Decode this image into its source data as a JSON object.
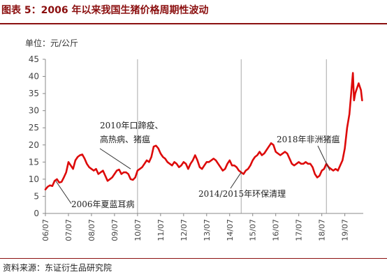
{
  "figure": {
    "title": "图表 5：2006 年以来我国生猪价格周期性波动",
    "unit_label": "单位：元/公斤",
    "source": "资料来源：东证衍生品研究院"
  },
  "colors": {
    "line": "#dd0a0a",
    "title": "#8b0f0f",
    "divider": "#a9a9a9"
  },
  "chart_data": {
    "type": "line",
    "xlabel": "",
    "ylabel": "元/公斤",
    "ylim": [
      0,
      45
    ],
    "yticks": [
      "0",
      "5",
      "10",
      "15",
      "20",
      "25",
      "30",
      "35",
      "40",
      "45"
    ],
    "x_tick_labels": [
      "06/07",
      "07/07",
      "08/07",
      "09/07",
      "10/07",
      "11/07",
      "12/07",
      "13/07",
      "14/07",
      "15/07",
      "16/07",
      "17/07",
      "18/07",
      "19/07"
    ],
    "grid": false,
    "series": [
      {
        "x": [
          2006.5,
          2006.6,
          2006.7,
          2006.8,
          2006.9,
          2007.0,
          2007.1,
          2007.2,
          2007.3,
          2007.4,
          2007.5,
          2007.6,
          2007.7,
          2007.8,
          2007.9,
          2008.0,
          2008.1,
          2008.2,
          2008.3,
          2008.4,
          2008.5,
          2008.6,
          2008.7,
          2008.8,
          2008.9,
          2009.0,
          2009.1,
          2009.2,
          2009.3,
          2009.4,
          2009.5,
          2009.6,
          2009.7,
          2009.8,
          2009.9,
          2010.0,
          2010.1,
          2010.2,
          2010.3,
          2010.4,
          2010.5,
          2010.6,
          2010.7,
          2010.8,
          2010.9,
          2011.0,
          2011.1,
          2011.2,
          2011.3,
          2011.4,
          2011.5,
          2011.6,
          2011.7,
          2011.8,
          2011.9,
          2012.0,
          2012.1,
          2012.2,
          2012.3,
          2012.4,
          2012.5,
          2012.6,
          2012.7,
          2012.8,
          2012.9,
          2013.0,
          2013.1,
          2013.2,
          2013.3,
          2013.4,
          2013.5,
          2013.6,
          2013.7,
          2013.8,
          2013.9,
          2014.0,
          2014.1,
          2014.2,
          2014.3,
          2014.4,
          2014.5,
          2014.6,
          2014.7,
          2014.8,
          2014.9,
          2015.0,
          2015.1,
          2015.2,
          2015.3,
          2015.4,
          2015.5,
          2015.6,
          2015.7,
          2015.8,
          2015.9,
          2016.0,
          2016.1,
          2016.2,
          2016.3,
          2016.4,
          2016.5,
          2016.6,
          2016.7,
          2016.8,
          2016.9,
          2017.0,
          2017.1,
          2017.2,
          2017.3,
          2017.4,
          2017.5,
          2017.6,
          2017.7,
          2017.8,
          2017.9,
          2018.0,
          2018.1,
          2018.2,
          2018.3,
          2018.4,
          2018.5,
          2018.6,
          2018.7,
          2018.8,
          2018.9,
          2019.0,
          2019.1,
          2019.2,
          2019.3,
          2019.4,
          2019.5,
          2019.6,
          2019.7,
          2019.8,
          2019.85,
          2019.9,
          2019.95,
          2020.0,
          2020.1,
          2020.2,
          2020.25
        ],
        "values": [
          7.0,
          7.8,
          8.2,
          8.0,
          9.5,
          10.0,
          9.0,
          9.2,
          10.5,
          12.0,
          15.0,
          14.0,
          13.0,
          15.5,
          16.5,
          17.0,
          17.2,
          16.0,
          14.5,
          13.5,
          13.0,
          12.5,
          13.0,
          11.5,
          12.0,
          12.5,
          11.0,
          9.5,
          10.0,
          10.5,
          11.5,
          12.5,
          12.8,
          11.5,
          12.0,
          12.0,
          11.5,
          10.0,
          9.8,
          10.5,
          12.5,
          13.0,
          13.5,
          14.5,
          15.5,
          15.0,
          16.5,
          19.5,
          19.8,
          19.0,
          17.5,
          16.5,
          16.0,
          15.0,
          14.5,
          14.0,
          15.0,
          14.5,
          13.5,
          14.0,
          15.0,
          14.5,
          13.0,
          14.5,
          15.5,
          17.0,
          15.5,
          13.5,
          13.0,
          14.0,
          15.0,
          15.0,
          15.5,
          16.0,
          15.5,
          14.5,
          13.5,
          12.5,
          13.0,
          14.5,
          15.5,
          14.0,
          14.0,
          13.5,
          12.5,
          12.0,
          11.5,
          12.5,
          13.0,
          14.0,
          15.5,
          16.5,
          17.0,
          18.0,
          17.0,
          17.5,
          18.5,
          19.5,
          20.5,
          20.0,
          18.0,
          17.5,
          17.0,
          17.5,
          18.0,
          17.5,
          16.0,
          14.5,
          14.0,
          14.5,
          15.0,
          14.5,
          14.5,
          15.0,
          14.5,
          14.5,
          13.5,
          11.5,
          10.5,
          11.0,
          12.5,
          13.0,
          14.5,
          13.5,
          13.0,
          12.5,
          13.0,
          12.5,
          14.0,
          15.5,
          19.0,
          25.0,
          29.0,
          37.0,
          41.0,
          33.0,
          35.0,
          36.0,
          38.0,
          36.0,
          33.0
        ]
      }
    ],
    "markers": [
      {
        "x": 2010.5
      },
      {
        "x": 2015.0
      },
      {
        "x": 2018.7
      }
    ],
    "annotations": [
      {
        "lines": [
          "2010年口蹄疫、",
          "高热病、猪瘟"
        ],
        "point": [
          2010.2,
          13.0
        ]
      },
      {
        "lines": [
          "2006年夏蓝耳病"
        ],
        "point": [
          2006.95,
          9.5
        ]
      },
      {
        "lines": [
          "2014/2015年环保清理"
        ],
        "point": [
          2015.0,
          12.0
        ]
      },
      {
        "lines": [
          "2018年非洲猪瘟"
        ],
        "point": [
          2018.85,
          12.5
        ]
      }
    ]
  }
}
